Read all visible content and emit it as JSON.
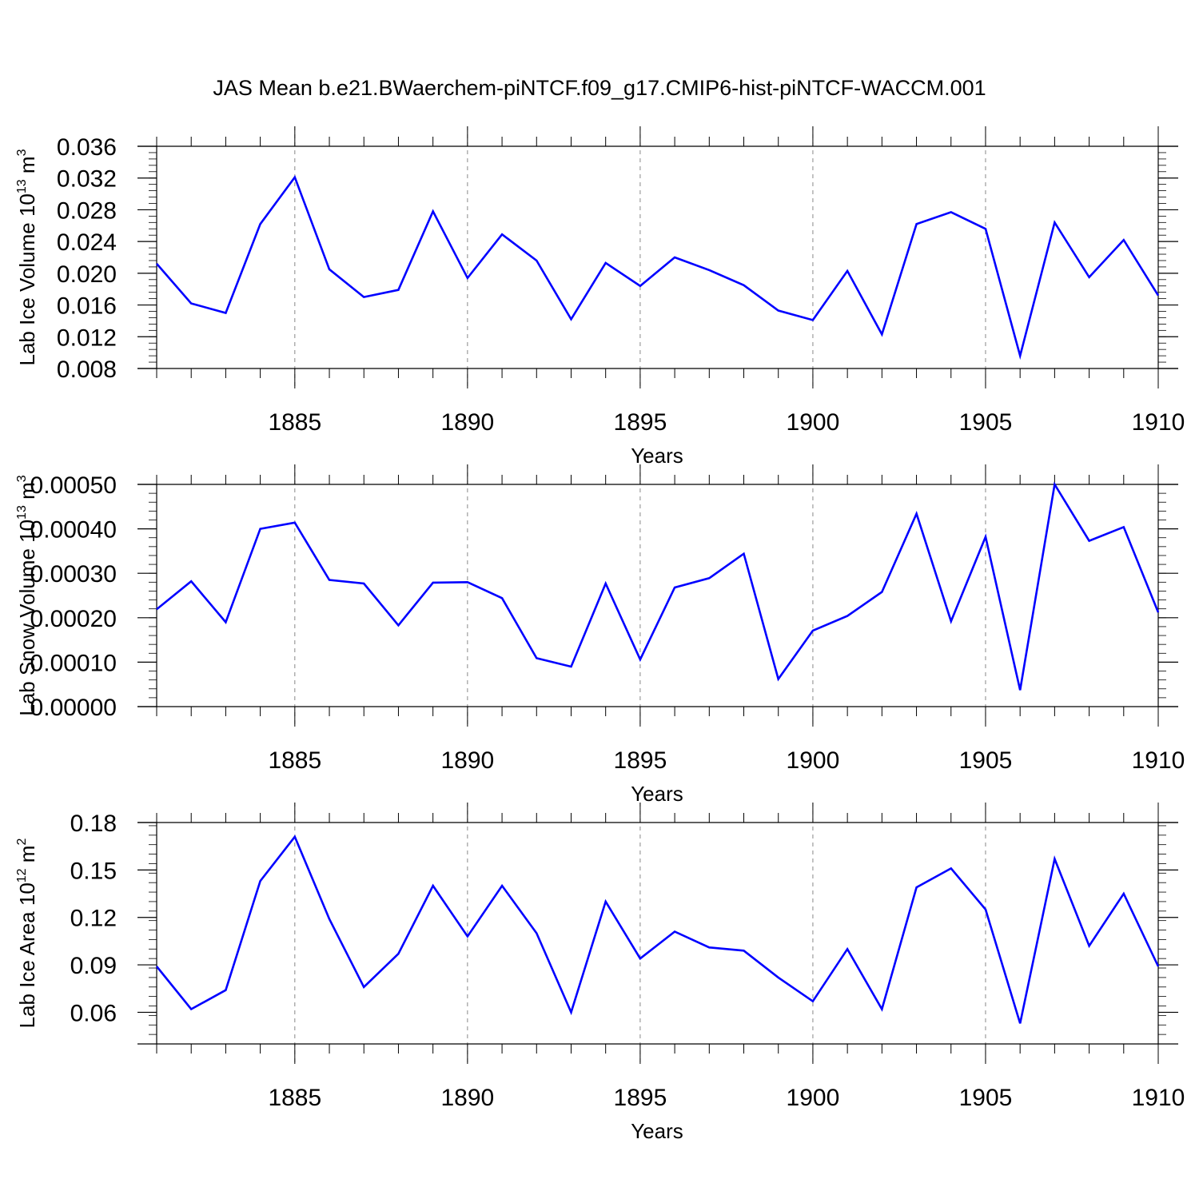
{
  "figure_title": "JAS Mean b.e21.BWaerchem-piNTCF.f09_g17.CMIP6-hist-piNTCF-WACCM.001",
  "colors": {
    "line": "#0000ff",
    "axis": "#000000",
    "grid": "#888888",
    "background": "#ffffff"
  },
  "chart_data": [
    {
      "type": "line",
      "title": "JAS Mean b.e21.BWaerchem-piNTCF.f09_g17.CMIP6-hist-piNTCF-WACCM.001",
      "xlabel": "Years",
      "ylabel": {
        "text": "Lab Ice Volume 10",
        "sup1": "13",
        "mid": " m",
        "sup2": "3"
      },
      "xlim": [
        1881,
        1910
      ],
      "ylim": [
        0.008,
        0.036
      ],
      "x_ticks": [
        1885,
        1890,
        1895,
        1900,
        1905,
        1910
      ],
      "x_tick_labels": [
        "1885",
        "1890",
        "1895",
        "1900",
        "1905",
        "1910"
      ],
      "y_ticks": [
        0.008,
        0.012,
        0.016,
        0.02,
        0.024,
        0.028,
        0.032,
        0.036
      ],
      "y_tick_labels": [
        "0.008",
        "0.012",
        "0.016",
        "0.020",
        "0.024",
        "0.028",
        "0.032",
        "0.036"
      ],
      "y_minor_step": 0.0008,
      "grid": "vertical dashed at major x ticks",
      "x": [
        1881,
        1882,
        1883,
        1884,
        1885,
        1886,
        1887,
        1888,
        1889,
        1890,
        1891,
        1892,
        1893,
        1894,
        1895,
        1896,
        1897,
        1898,
        1899,
        1900,
        1901,
        1902,
        1903,
        1904,
        1905,
        1906,
        1907,
        1908,
        1909,
        1910
      ],
      "series": [
        {
          "name": "Lab Ice Volume",
          "values": [
            0.0212,
            0.0162,
            0.015,
            0.0262,
            0.0321,
            0.0205,
            0.017,
            0.0179,
            0.0278,
            0.0194,
            0.0249,
            0.0216,
            0.0142,
            0.0213,
            0.0184,
            0.022,
            0.0204,
            0.0185,
            0.0153,
            0.0141,
            0.0203,
            0.0123,
            0.0262,
            0.0277,
            0.0256,
            0.0096,
            0.0264,
            0.0195,
            0.0242,
            0.0172
          ]
        }
      ]
    },
    {
      "type": "line",
      "xlabel": "Years",
      "ylabel": {
        "text": "Lab Snow Volume 10",
        "sup1": "13",
        "mid": " m",
        "sup2": "3"
      },
      "xlim": [
        1881,
        1910
      ],
      "ylim": [
        0.0,
        0.0005
      ],
      "x_ticks": [
        1885,
        1890,
        1895,
        1900,
        1905,
        1910
      ],
      "x_tick_labels": [
        "1885",
        "1890",
        "1895",
        "1900",
        "1905",
        "1910"
      ],
      "y_ticks": [
        0.0,
        0.0001,
        0.0002,
        0.0003,
        0.0004,
        0.0005
      ],
      "y_tick_labels": [
        "0.00000",
        "0.00010",
        "0.00020",
        "0.00030",
        "0.00040",
        "0.00050"
      ],
      "y_minor_step": 2e-05,
      "grid": "vertical dashed at major x ticks",
      "x": [
        1881,
        1882,
        1883,
        1884,
        1885,
        1886,
        1887,
        1888,
        1889,
        1890,
        1891,
        1892,
        1893,
        1894,
        1895,
        1896,
        1897,
        1898,
        1899,
        1900,
        1901,
        1902,
        1903,
        1904,
        1905,
        1906,
        1907,
        1908,
        1909,
        1910
      ],
      "series": [
        {
          "name": "Lab Snow Volume",
          "values": [
            0.000219,
            0.000282,
            0.00019,
            0.0004,
            0.000414,
            0.000285,
            0.000277,
            0.000183,
            0.000279,
            0.00028,
            0.000244,
            0.000109,
            9e-05,
            0.000277,
            0.000106,
            0.000268,
            0.000289,
            0.000344,
            6.2e-05,
            0.000171,
            0.000204,
            0.000258,
            0.000434,
            0.000192,
            0.000382,
            3.7e-05,
            0.0005,
            0.000373,
            0.000404,
            0.000212
          ]
        }
      ]
    },
    {
      "type": "line",
      "xlabel": "Years",
      "ylabel": {
        "text": "Lab Ice Area 10",
        "sup1": "12",
        "mid": " m",
        "sup2": "2"
      },
      "xlim": [
        1881,
        1910
      ],
      "ylim": [
        0.04,
        0.18
      ],
      "x_ticks": [
        1885,
        1890,
        1895,
        1900,
        1905,
        1910
      ],
      "x_tick_labels": [
        "1885",
        "1890",
        "1895",
        "1900",
        "1905",
        "1910"
      ],
      "y_ticks": [
        0.06,
        0.09,
        0.12,
        0.15,
        0.18
      ],
      "y_tick_labels": [
        "0.06",
        "0.09",
        "0.12",
        "0.15",
        "0.18"
      ],
      "y_minor_step": 0.006,
      "grid": "vertical dashed at major x ticks",
      "x": [
        1881,
        1882,
        1883,
        1884,
        1885,
        1886,
        1887,
        1888,
        1889,
        1890,
        1891,
        1892,
        1893,
        1894,
        1895,
        1896,
        1897,
        1898,
        1899,
        1900,
        1901,
        1902,
        1903,
        1904,
        1905,
        1906,
        1907,
        1908,
        1909,
        1910
      ],
      "series": [
        {
          "name": "Lab Ice Area",
          "values": [
            0.089,
            0.062,
            0.074,
            0.143,
            0.171,
            0.119,
            0.076,
            0.097,
            0.14,
            0.108,
            0.14,
            0.11,
            0.06,
            0.13,
            0.094,
            0.111,
            0.101,
            0.099,
            0.082,
            0.067,
            0.1,
            0.062,
            0.139,
            0.151,
            0.125,
            0.053,
            0.157,
            0.102,
            0.135,
            0.089
          ]
        }
      ]
    }
  ]
}
